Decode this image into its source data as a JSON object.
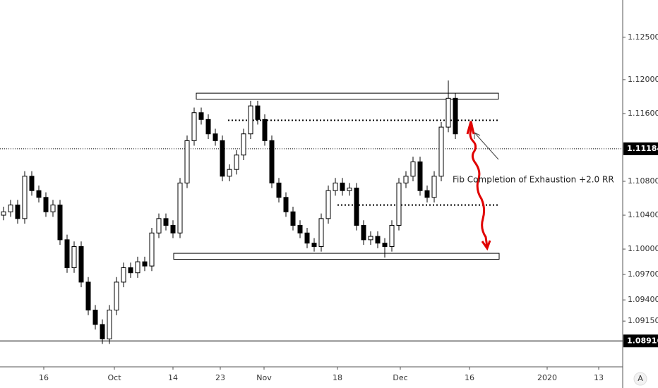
{
  "chart_data": {
    "type": "candlestick",
    "x": [
      0,
      1,
      2,
      3,
      4,
      5,
      6,
      7,
      8,
      9,
      10,
      11,
      12,
      13,
      14,
      15,
      16,
      17,
      18,
      19,
      20,
      21,
      22,
      23,
      24,
      25,
      26,
      27,
      28,
      29,
      30,
      31,
      32,
      33,
      34,
      35,
      36,
      37,
      38,
      39,
      40,
      41,
      42,
      43,
      44,
      45,
      46,
      47,
      48,
      49,
      50,
      51,
      52,
      53,
      54,
      55,
      56,
      57,
      58,
      59,
      60,
      61,
      62,
      63,
      64
    ],
    "open": [
      1.104,
      1.1044,
      1.1052,
      1.1036,
      1.1086,
      1.1069,
      1.1061,
      1.1044,
      1.1052,
      1.1011,
      1.0978,
      1.1003,
      1.0961,
      1.0928,
      1.0911,
      1.0894,
      1.0928,
      1.0961,
      1.0978,
      1.0972,
      1.0985,
      1.098,
      1.1019,
      1.1036,
      1.1028,
      1.1019,
      1.1078,
      1.1128,
      1.1161,
      1.1153,
      1.1136,
      1.1128,
      1.1086,
      1.1094,
      1.1111,
      1.1136,
      1.1169,
      1.1153,
      1.1128,
      1.1078,
      1.1061,
      1.1044,
      1.1028,
      1.1019,
      1.1007,
      1.1003,
      1.1036,
      1.1069,
      1.1078,
      1.1069,
      1.1072,
      1.1028,
      1.1011,
      1.1015,
      1.1007,
      1.1003,
      1.1028,
      1.1078,
      1.1086,
      1.1103,
      1.1069,
      1.1061,
      1.1086,
      1.1144,
      1.1178
    ],
    "high": [
      1.105,
      1.1058,
      1.1058,
      1.1092,
      1.1092,
      1.1075,
      1.1067,
      1.1058,
      1.1058,
      1.1017,
      1.1009,
      1.1009,
      1.0967,
      1.0934,
      1.0917,
      1.0934,
      1.0967,
      1.0984,
      1.0984,
      1.0991,
      1.0991,
      1.1025,
      1.1042,
      1.1042,
      1.1034,
      1.1084,
      1.1134,
      1.1167,
      1.1167,
      1.1159,
      1.1142,
      1.1134,
      1.11,
      1.1117,
      1.1142,
      1.1175,
      1.1175,
      1.1159,
      1.1134,
      1.1084,
      1.1067,
      1.105,
      1.1034,
      1.1025,
      1.1013,
      1.1042,
      1.1075,
      1.1084,
      1.1084,
      1.1078,
      1.1078,
      1.1034,
      1.1021,
      1.1021,
      1.1013,
      1.1034,
      1.1084,
      1.1092,
      1.1109,
      1.1109,
      1.1075,
      1.1092,
      1.115,
      1.1199,
      1.1184
    ],
    "low": [
      1.1034,
      1.1038,
      1.103,
      1.103,
      1.1063,
      1.1055,
      1.1038,
      1.1038,
      1.1005,
      1.0972,
      1.0972,
      1.0955,
      1.0922,
      1.0905,
      1.0888,
      1.0888,
      1.0922,
      1.0955,
      1.0966,
      1.0966,
      1.0974,
      1.0974,
      1.1013,
      1.1022,
      1.1013,
      1.1013,
      1.1072,
      1.1122,
      1.1147,
      1.113,
      1.1122,
      1.108,
      1.108,
      1.1088,
      1.1105,
      1.113,
      1.1147,
      1.1122,
      1.1072,
      1.1055,
      1.1038,
      1.1022,
      1.1013,
      1.1001,
      1.0997,
      1.0997,
      1.103,
      1.1063,
      1.1063,
      1.1063,
      1.1022,
      1.1005,
      1.1005,
      1.1001,
      1.099,
      1.0997,
      1.1022,
      1.1072,
      1.108,
      1.1063,
      1.1055,
      1.1055,
      1.108,
      1.1138,
      1.113
    ],
    "close": [
      1.1044,
      1.1052,
      1.1036,
      1.1086,
      1.1069,
      1.1061,
      1.1044,
      1.1052,
      1.1011,
      1.0978,
      1.1003,
      1.0961,
      1.0928,
      1.0911,
      1.0894,
      1.0928,
      1.0961,
      1.0978,
      1.0972,
      1.0985,
      1.098,
      1.1019,
      1.1036,
      1.1028,
      1.1019,
      1.1078,
      1.1128,
      1.1161,
      1.1153,
      1.1136,
      1.1128,
      1.1086,
      1.1094,
      1.1111,
      1.1136,
      1.1169,
      1.1153,
      1.1128,
      1.1078,
      1.1061,
      1.1044,
      1.1028,
      1.1019,
      1.1007,
      1.1003,
      1.1036,
      1.1069,
      1.1078,
      1.1069,
      1.1072,
      1.1028,
      1.1011,
      1.1015,
      1.1007,
      1.1003,
      1.1028,
      1.1078,
      1.1086,
      1.1103,
      1.1069,
      1.1061,
      1.1086,
      1.1144,
      1.1178,
      1.1136
    ],
    "up_color": "#ffffff",
    "down_color": "#000000",
    "wick_color": "#000000",
    "xlim": [
      -0.5,
      87.7
    ],
    "xticks": [
      {
        "value": 5.7,
        "label": "16"
      },
      {
        "value": 15.7,
        "label": "Oct"
      },
      {
        "value": 24,
        "label": "14"
      },
      {
        "value": 30.7,
        "label": "23"
      },
      {
        "value": 36.9,
        "label": "Nov"
      },
      {
        "value": 47.3,
        "label": "18"
      },
      {
        "value": 56.2,
        "label": "Dec"
      },
      {
        "value": 66,
        "label": "16"
      },
      {
        "value": 77,
        "label": "2020"
      },
      {
        "value": 84.3,
        "label": "13"
      }
    ],
    "ylim": [
      1.0861,
      1.1294
    ],
    "yticks": [
      {
        "value": 1.125,
        "label": "1.12500"
      },
      {
        "value": 1.12,
        "label": "1.12000"
      },
      {
        "value": 1.116,
        "label": "1.11600"
      },
      {
        "value": 1.108,
        "label": "1.10800"
      },
      {
        "value": 1.104,
        "label": "1.10400"
      },
      {
        "value": 1.1,
        "label": "1.10000"
      },
      {
        "value": 1.097,
        "label": "1.09700"
      },
      {
        "value": 1.094,
        "label": "1.09400"
      },
      {
        "value": 1.0915,
        "label": "1.09150"
      }
    ],
    "price_lines": [
      {
        "value": 1.11184,
        "label": "1.11184",
        "style": "dotted"
      },
      {
        "value": 1.08916,
        "label": "1.08916",
        "style": "solid"
      }
    ],
    "zones": [
      {
        "from": 27.3,
        "to": 70.1,
        "low": 1.1177,
        "high": 1.1184
      },
      {
        "from": 24.1,
        "to": 70.2,
        "low": 1.0988,
        "high": 1.0995
      }
    ],
    "levels": [
      {
        "from": 31.8,
        "to": 70,
        "value": 1.1152
      },
      {
        "from": 47.3,
        "to": 70,
        "value": 1.1052
      }
    ],
    "annotation": "Fib Completion of Exhaustion +2.0 RR",
    "scale_button": "A"
  }
}
